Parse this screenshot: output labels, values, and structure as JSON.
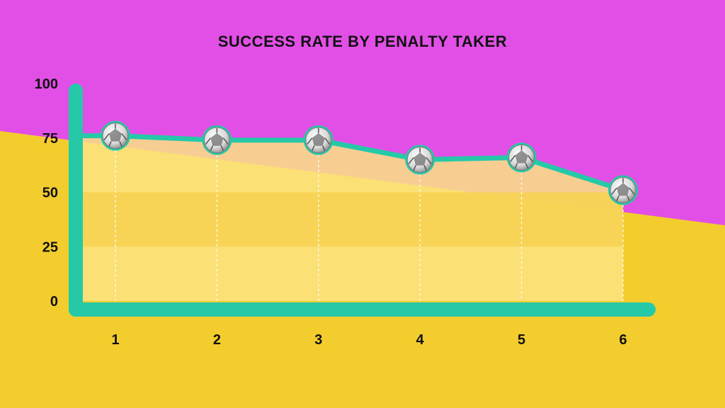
{
  "colors": {
    "background_top": "#e24fe6",
    "background_bottom": "#f3cd2e",
    "area_fill": "#fbe383",
    "band_fill": "#f6d353",
    "line": "#25c9a8",
    "axis": "#25c9a8",
    "ball": "#e6e6e6"
  },
  "marker_icon": "football-icon",
  "chart_data": {
    "type": "line",
    "title": "SUCCESS RATE BY PENALTY TAKER",
    "xlabel": "",
    "ylabel": "",
    "x": [
      1,
      2,
      3,
      4,
      5,
      6
    ],
    "x_tick_labels": [
      "1",
      "2",
      "3",
      "4",
      "5",
      "6"
    ],
    "y_tick_labels": [
      "0",
      "25",
      "50",
      "75",
      "100"
    ],
    "series": [
      {
        "values": [
          76,
          74,
          74,
          65,
          66,
          51
        ]
      }
    ],
    "ylim": [
      0,
      100
    ],
    "grid": false,
    "legend": "none"
  }
}
